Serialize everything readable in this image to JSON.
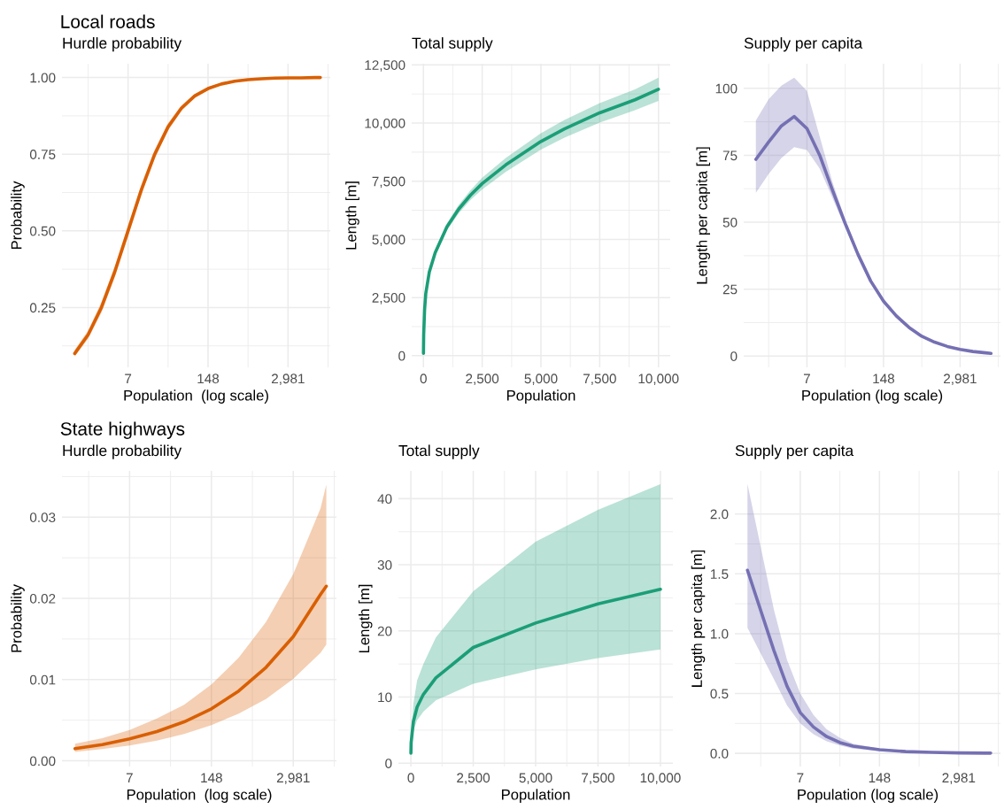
{
  "chart_data": [
    {
      "type": "line",
      "title": "Local roads",
      "subtitle": "Hurdle probability",
      "xlabel": "Population  (log scale)",
      "ylabel": "Probability",
      "log": "x",
      "grid": true,
      "line_style": "solid",
      "xlim": [
        0.62,
        14500
      ],
      "ylim": [
        0.055,
        1.045
      ],
      "xticks": [
        {
          "value": 1.6487,
          "label": null
        },
        {
          "value": 7.389,
          "label": "7"
        },
        {
          "value": 33.12,
          "label": null
        },
        {
          "value": 148.41,
          "label": "148"
        },
        {
          "value": 665.14,
          "label": null
        },
        {
          "value": 2980.96,
          "label": "2,981"
        },
        {
          "value": 13359.7,
          "label": null
        }
      ],
      "yticks": [
        {
          "value": 0.125,
          "label": null
        },
        0.25,
        {
          "value": 0.375,
          "label": null
        },
        {
          "value": 0.5,
          "label": "0.50"
        },
        {
          "value": 0.625,
          "label": null
        },
        0.75,
        {
          "value": 0.875,
          "label": null
        },
        {
          "value": 1.0,
          "label": "1.00"
        }
      ],
      "x": [
        1,
        1.65,
        2.72,
        4.48,
        7.39,
        12.18,
        20.09,
        33.12,
        54.6,
        90.02,
        148.4,
        244.7,
        403.4,
        665.1,
        1096.6,
        1808,
        2981,
        4915,
        8103,
        10000
      ],
      "series": [
        {
          "color": "#d95f02",
          "values": [
            0.1,
            0.161,
            0.25,
            0.366,
            0.5,
            0.634,
            0.75,
            0.839,
            0.9,
            0.94,
            0.964,
            0.979,
            0.988,
            0.993,
            0.996,
            0.998,
            0.999,
            0.999,
            1.0,
            1.0
          ],
          "lower": [
            0.09,
            0.148,
            0.233,
            0.348,
            0.482,
            0.617,
            0.735,
            0.827,
            0.891,
            0.933,
            0.959,
            0.976,
            0.986,
            0.992,
            0.995,
            0.997,
            0.998,
            0.999,
            0.999,
            0.999
          ],
          "upper": [
            0.112,
            0.175,
            0.268,
            0.384,
            0.518,
            0.651,
            0.765,
            0.851,
            0.909,
            0.947,
            0.969,
            0.982,
            0.99,
            0.994,
            0.997,
            0.999,
            1.0,
            1.0,
            1.0,
            1.0
          ]
        }
      ]
    },
    {
      "type": "line",
      "subtitle": "Total supply",
      "xlabel": "Population",
      "ylabel": "Length [m]",
      "grid": true,
      "line_style": "solid",
      "xlim": [
        -500,
        10500
      ],
      "ylim": [
        -500,
        12550
      ],
      "xticks": [
        0,
        {
          "value": 1250,
          "label": null
        },
        {
          "value": 2500,
          "label": "2,500"
        },
        {
          "value": 3750,
          "label": null
        },
        {
          "value": 5000,
          "label": "5,000"
        },
        {
          "value": 6250,
          "label": null
        },
        {
          "value": 7500,
          "label": "7,500"
        },
        {
          "value": 8750,
          "label": null
        },
        {
          "value": 10000,
          "label": "10,000"
        }
      ],
      "yticks": [
        0,
        {
          "value": 1250,
          "label": null
        },
        {
          "value": 2500,
          "label": "2,500"
        },
        {
          "value": 3750,
          "label": null
        },
        {
          "value": 5000,
          "label": "5,000"
        },
        {
          "value": 6250,
          "label": null
        },
        {
          "value": 7500,
          "label": "7,500"
        },
        {
          "value": 8750,
          "label": null
        },
        {
          "value": 10000,
          "label": "10,000"
        },
        {
          "value": 11250,
          "label": null
        },
        {
          "value": 12500,
          "label": "12,500"
        }
      ],
      "x": [
        1,
        10,
        50,
        100,
        250,
        500,
        1000,
        1500,
        2000,
        2500,
        3500,
        5000,
        6000,
        7500,
        9000,
        10000
      ],
      "series": [
        {
          "color": "#1b9e77",
          "values": [
            100,
            900,
            2000,
            2680,
            3600,
            4430,
            5540,
            6300,
            6900,
            7400,
            8200,
            9210,
            9750,
            10440,
            11000,
            11450
          ],
          "lower": [
            60,
            850,
            1940,
            2600,
            3500,
            4310,
            5390,
            6120,
            6690,
            7150,
            7900,
            8860,
            9370,
            10020,
            10550,
            10950
          ],
          "upper": [
            140,
            950,
            2060,
            2760,
            3700,
            4550,
            5690,
            6480,
            7110,
            7650,
            8500,
            9560,
            10130,
            10860,
            11450,
            11950
          ]
        }
      ]
    },
    {
      "type": "line",
      "subtitle": "Supply per capita",
      "xlabel": "Population (log scale)",
      "ylabel": "Length per capita [m]",
      "log": "x",
      "grid": true,
      "line_style": "solid",
      "xlim": [
        0.62,
        14500
      ],
      "ylim": [
        -4.2,
        109.2
      ],
      "xticks": [
        {
          "value": 1.6487,
          "label": null
        },
        {
          "value": 7.389,
          "label": "7"
        },
        {
          "value": 33.12,
          "label": null
        },
        {
          "value": 148.41,
          "label": "148"
        },
        {
          "value": 665.14,
          "label": null
        },
        {
          "value": 2980.96,
          "label": "2,981"
        },
        {
          "value": 13359.7,
          "label": null
        }
      ],
      "yticks": [
        0,
        {
          "value": 12.5,
          "label": null
        },
        25,
        {
          "value": 37.5,
          "label": null
        },
        50,
        {
          "value": 62.5,
          "label": null
        },
        75,
        {
          "value": 87.5,
          "label": null
        },
        100
      ],
      "x": [
        1,
        1.65,
        2.72,
        4.48,
        7.39,
        12.18,
        20.09,
        33.12,
        54.6,
        90.02,
        148.4,
        244.7,
        403.4,
        665.1,
        1096.6,
        1808,
        2981,
        4915,
        8103,
        10000
      ],
      "series": [
        {
          "color": "#7570b3",
          "values": [
            73.5,
            80,
            86,
            89.5,
            85,
            75,
            62,
            49.5,
            38,
            28,
            20.5,
            15,
            10.7,
            7.4,
            5.2,
            3.6,
            2.5,
            1.7,
            1.2,
            1.0
          ],
          "lower": [
            61,
            68,
            74,
            78,
            77,
            70,
            59,
            48,
            37,
            27.2,
            19.8,
            14.4,
            10.2,
            7.0,
            4.9,
            3.3,
            2.2,
            1.4,
            0.9,
            0.7
          ],
          "upper": [
            88,
            96,
            101,
            104,
            99,
            82,
            65,
            51,
            39,
            28.8,
            21.2,
            15.6,
            11.2,
            7.8,
            5.5,
            3.9,
            2.8,
            2.0,
            1.5,
            1.3
          ]
        }
      ]
    },
    {
      "type": "line",
      "title": "State highways",
      "subtitle": "Hurdle probability",
      "xlabel": "Population  (log scale)",
      "ylabel": "Probability",
      "log": "x",
      "grid": true,
      "line_style": "solid",
      "xlim": [
        0.62,
        14500
      ],
      "ylim": [
        -0.0007,
        0.0357
      ],
      "xticks": [
        {
          "value": 1.6487,
          "label": null
        },
        {
          "value": 7.389,
          "label": "7"
        },
        {
          "value": 33.12,
          "label": null
        },
        {
          "value": 148.41,
          "label": "148"
        },
        {
          "value": 665.14,
          "label": null
        },
        {
          "value": 2980.96,
          "label": "2,981"
        },
        {
          "value": 13359.7,
          "label": null
        }
      ],
      "yticks": [
        {
          "value": 0.0,
          "label": "0.00"
        },
        {
          "value": 0.005,
          "label": null
        },
        0.01,
        {
          "value": 0.015,
          "label": null
        },
        0.02,
        {
          "value": 0.025,
          "label": null
        },
        0.03,
        {
          "value": 0.035,
          "label": null
        }
      ],
      "x": [
        1,
        2.72,
        7.39,
        20.09,
        54.6,
        148.4,
        403.4,
        1096.6,
        2981,
        8103,
        10000
      ],
      "series": [
        {
          "color": "#d95f02",
          "values": [
            0.0015,
            0.002,
            0.0027,
            0.0036,
            0.0048,
            0.0064,
            0.0086,
            0.0115,
            0.0153,
            0.0205,
            0.0215
          ],
          "lower": [
            0.0011,
            0.00145,
            0.0019,
            0.0025,
            0.0033,
            0.0044,
            0.0058,
            0.0076,
            0.0101,
            0.0133,
            0.0143
          ],
          "upper": [
            0.0021,
            0.0028,
            0.0038,
            0.0052,
            0.0069,
            0.0094,
            0.0127,
            0.0171,
            0.023,
            0.0311,
            0.034
          ]
        }
      ]
    },
    {
      "type": "line",
      "subtitle": "Total supply",
      "xlabel": "Population",
      "ylabel": "Length [m]",
      "grid": true,
      "line_style": "solid",
      "xlim": [
        -500,
        10500
      ],
      "ylim": [
        -0.5,
        44.2
      ],
      "xticks": [
        0,
        {
          "value": 1250,
          "label": null
        },
        {
          "value": 2500,
          "label": "2,500"
        },
        {
          "value": 3750,
          "label": null
        },
        {
          "value": 5000,
          "label": "5,000"
        },
        {
          "value": 6250,
          "label": null
        },
        {
          "value": 7500,
          "label": "7,500"
        },
        {
          "value": 8750,
          "label": null
        },
        {
          "value": 10000,
          "label": "10,000"
        }
      ],
      "yticks": [
        0,
        {
          "value": 5,
          "label": null
        },
        10,
        {
          "value": 15,
          "label": null
        },
        20,
        {
          "value": 25,
          "label": null
        },
        30,
        {
          "value": 35,
          "label": null
        },
        40
      ],
      "x": [
        1,
        10,
        100,
        250,
        500,
        1000,
        2500,
        5000,
        7500,
        10000
      ],
      "series": [
        {
          "color": "#1b9e77",
          "values": [
            1.5,
            3.1,
            6.3,
            8.5,
            10.4,
            12.9,
            17.5,
            21.2,
            24.1,
            26.3
          ],
          "lower": [
            1.2,
            2.5,
            5.0,
            6.5,
            7.8,
            9.5,
            12.0,
            14.2,
            15.9,
            17.2
          ],
          "upper": [
            2.2,
            4.5,
            9.0,
            12.5,
            15.0,
            19.0,
            26.0,
            33.5,
            38.3,
            42.2
          ]
        }
      ]
    },
    {
      "type": "line",
      "subtitle": "Supply per capita",
      "xlabel": "Population (log scale)",
      "ylabel": "Length per capita [m]",
      "log": "x",
      "grid": true,
      "line_style": "solid",
      "xlim": [
        0.62,
        14500
      ],
      "ylim": [
        -0.11,
        2.36
      ],
      "xticks": [
        {
          "value": 1.6487,
          "label": null
        },
        {
          "value": 7.389,
          "label": "7"
        },
        {
          "value": 33.12,
          "label": null
        },
        {
          "value": 148.41,
          "label": "148"
        },
        {
          "value": 665.14,
          "label": null
        },
        {
          "value": 2980.96,
          "label": "2,981"
        },
        {
          "value": 13359.7,
          "label": null
        }
      ],
      "yticks": [
        {
          "value": 0.0,
          "label": "0.0"
        },
        {
          "value": 0.25,
          "label": null
        },
        0.5,
        {
          "value": 0.75,
          "label": null
        },
        {
          "value": 1.0,
          "label": "1.0"
        },
        {
          "value": 1.25,
          "label": null
        },
        1.5,
        {
          "value": 1.75,
          "label": null
        },
        {
          "value": 2.0,
          "label": "2.0"
        }
      ],
      "x": [
        1,
        2.72,
        4.48,
        7.39,
        12.18,
        20.09,
        33.12,
        54.6,
        148.4,
        403.4,
        1096.6,
        2981,
        8103,
        10000
      ],
      "series": [
        {
          "color": "#7570b3",
          "values": [
            1.53,
            0.86,
            0.56,
            0.34,
            0.22,
            0.14,
            0.09,
            0.06,
            0.03,
            0.015,
            0.008,
            0.004,
            0.002,
            0.002
          ],
          "lower": [
            1.05,
            0.62,
            0.4,
            0.25,
            0.16,
            0.1,
            0.065,
            0.04,
            0.02,
            0.01,
            0.005,
            0.003,
            0.001,
            0.001
          ],
          "upper": [
            2.25,
            1.2,
            0.78,
            0.5,
            0.32,
            0.2,
            0.13,
            0.08,
            0.04,
            0.02,
            0.011,
            0.006,
            0.003,
            0.003
          ]
        }
      ]
    }
  ]
}
